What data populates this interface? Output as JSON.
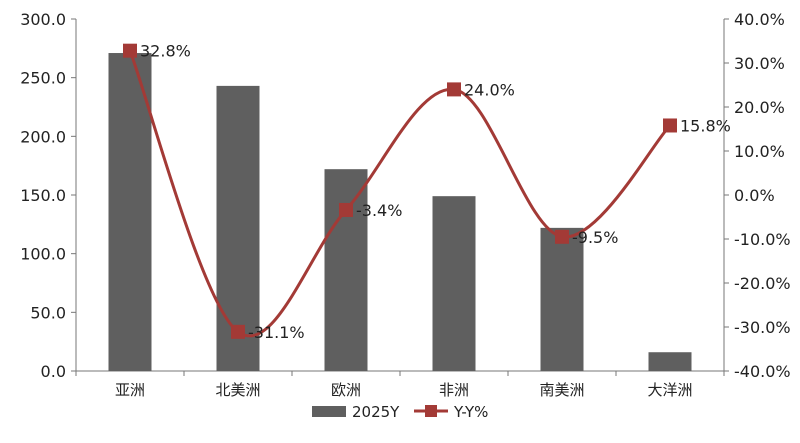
{
  "chart_data": {
    "type": "bar",
    "categories": [
      "亚洲",
      "北美洲",
      "欧洲",
      "非洲",
      "南美洲",
      "大洋洲"
    ],
    "series": [
      {
        "name": "2025Y",
        "type": "bar",
        "axis": "left",
        "color": "#5f5f5f",
        "values": [
          271.0,
          243.0,
          172.0,
          149.0,
          122.0,
          16.0
        ]
      },
      {
        "name": "Y-Y%",
        "type": "line",
        "axis": "right",
        "color": "#a33a36",
        "values": [
          32.8,
          -31.1,
          -3.4,
          24.0,
          -9.5,
          15.8
        ],
        "data_labels": [
          "32.8%",
          "-31.1%",
          "-3.4%",
          "24.0%",
          "-9.5%",
          "15.8%"
        ]
      }
    ],
    "y_left": {
      "ylim": [
        0,
        300
      ],
      "ticks": [
        "0.0",
        "50.0",
        "100.0",
        "150.0",
        "200.0",
        "250.0",
        "300.0"
      ]
    },
    "y_right": {
      "ylim": [
        -40,
        40
      ],
      "ticks": [
        "-40.0%",
        "-30.0%",
        "-20.0%",
        "-10.0%",
        "0.0%",
        "10.0%",
        "20.0%",
        "30.0%",
        "40.0%"
      ]
    },
    "title": "",
    "xlabel": "",
    "ylabel": "",
    "grid": false,
    "legend_position": "bottom"
  }
}
